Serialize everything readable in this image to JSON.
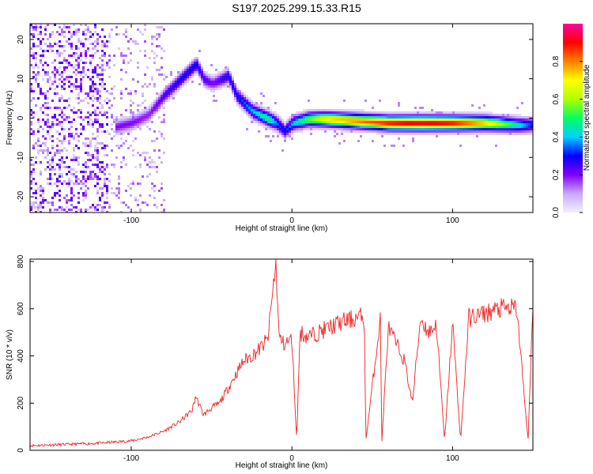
{
  "title": "S197.2025.299.15.33.R15",
  "chart_data": [
    {
      "type": "heatmap",
      "xlabel": "Height of straight line (km)",
      "ylabel": "Frequency (Hz)",
      "xlim": [
        -163,
        150
      ],
      "ylim": [
        -24,
        24
      ],
      "xticks": [
        -100,
        0,
        100
      ],
      "yticks": [
        -20,
        -10,
        0,
        10,
        20
      ],
      "colorbar": {
        "label": "Normalized spectral amplitude",
        "range": [
          0.0,
          1.0
        ],
        "ticks": [
          0.0,
          0.2,
          0.4,
          0.6,
          0.8
        ],
        "tick_labels": [
          "0.0",
          "0.2",
          "0.4",
          "0.6",
          "0.8"
        ],
        "colors": [
          "#f4f0ff",
          "#c8a8ff",
          "#8000ff",
          "#0000ff",
          "#00d0ff",
          "#00ff60",
          "#b0ff00",
          "#ffff00",
          "#ff8000",
          "#ff0000",
          "#ff00a0"
        ]
      },
      "ridge": {
        "height_km": [
          -110,
          -100,
          -90,
          -80,
          -70,
          -60,
          -55,
          -50,
          -45,
          -40,
          -35,
          -30,
          -25,
          -20,
          -15,
          -10,
          -5,
          0,
          10,
          20,
          40,
          60,
          80,
          100,
          120,
          140,
          150
        ],
        "frequency_hz": [
          -2,
          -1,
          1,
          6,
          10,
          14,
          10,
          9,
          10,
          11,
          6,
          4,
          2,
          1,
          0,
          -1,
          -3,
          -1,
          0,
          0,
          -0.5,
          -1,
          -1,
          -1,
          -1,
          -1.5,
          -1.5
        ],
        "amplitude": [
          0.2,
          0.2,
          0.18,
          0.25,
          0.3,
          0.3,
          0.25,
          0.2,
          0.25,
          0.3,
          0.3,
          0.35,
          0.4,
          0.45,
          0.5,
          0.35,
          0.3,
          0.4,
          0.55,
          0.7,
          0.8,
          0.9,
          0.95,
          0.9,
          0.75,
          0.45,
          0.3
        ]
      }
    },
    {
      "type": "line",
      "xlabel": "Height of straight line (km)",
      "ylabel": "SNR (10 * v/v)",
      "xlim": [
        -163,
        150
      ],
      "ylim": [
        0,
        810
      ],
      "xticks": [
        -100,
        0,
        100
      ],
      "yticks": [
        0,
        200,
        400,
        600,
        800
      ],
      "color": "#ee2222",
      "series": [
        {
          "name": "SNR",
          "x": [
            -163,
            -140,
            -120,
            -100,
            -90,
            -80,
            -70,
            -62,
            -60,
            -55,
            -50,
            -45,
            -40,
            -35,
            -30,
            -25,
            -20,
            -15,
            -10,
            -8,
            -5,
            0,
            3,
            5,
            10,
            20,
            30,
            40,
            45,
            46,
            55,
            56,
            60,
            70,
            75,
            80,
            85,
            90,
            95,
            100,
            105,
            110,
            120,
            130,
            140,
            147,
            150
          ],
          "y": [
            20,
            25,
            30,
            40,
            55,
            80,
            120,
            170,
            230,
            150,
            180,
            200,
            260,
            320,
            380,
            400,
            430,
            470,
            800,
            480,
            450,
            470,
            40,
            500,
            480,
            510,
            540,
            560,
            570,
            40,
            560,
            40,
            520,
            380,
            200,
            560,
            500,
            530,
            40,
            540,
            40,
            560,
            580,
            600,
            600,
            40,
            610
          ]
        }
      ]
    }
  ]
}
